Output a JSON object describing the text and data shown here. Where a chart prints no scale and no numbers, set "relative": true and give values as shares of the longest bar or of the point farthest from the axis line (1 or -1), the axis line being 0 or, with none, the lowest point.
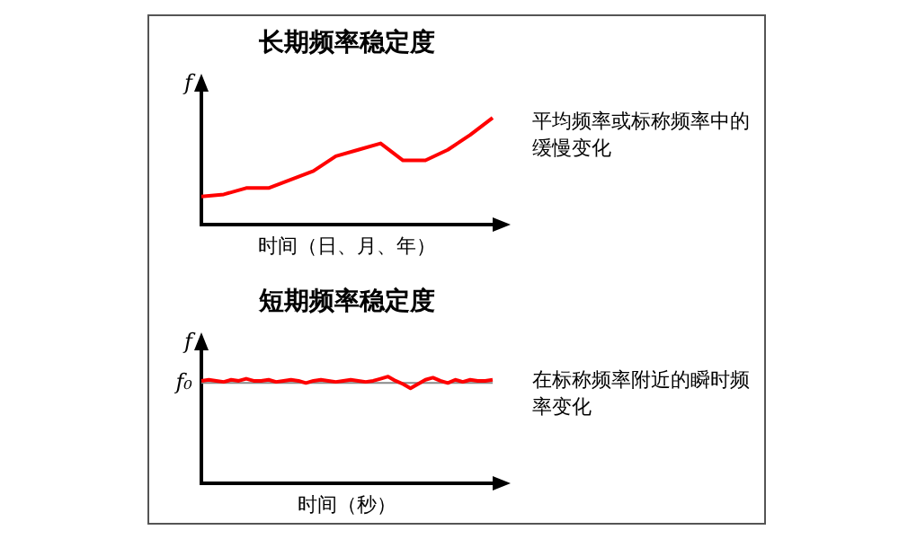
{
  "chart_data": [
    {
      "type": "line",
      "title": "长期频率稳定度",
      "xlabel": "时间（日、月、年）",
      "ylabel": "f",
      "relative": true,
      "categories": [
        null,
        null,
        null,
        null,
        null,
        null,
        null,
        null,
        null,
        null,
        null,
        null,
        null,
        null
      ],
      "series": [
        {
          "color": "#ff0000",
          "values": [
            0.26,
            0.28,
            0.34,
            0.34,
            0.42,
            0.5,
            0.64,
            0.7,
            0.76,
            0.6,
            0.6,
            0.7,
            0.84,
            1
          ]
        }
      ],
      "annotations": [
        "平均频率或标称频率中的缓慢变化"
      ],
      "grid": false,
      "legend": false,
      "marker": "none",
      "line_style": "solid"
    },
    {
      "type": "line",
      "title": "短期频率稳定度",
      "xlabel": "时间（秒）",
      "ylabel": "f",
      "relative": true,
      "categories": [
        null,
        null,
        null,
        null,
        null,
        null,
        null,
        null,
        null,
        null,
        null,
        null,
        null,
        null,
        null,
        null,
        null,
        null,
        null,
        null,
        null,
        null,
        null,
        null,
        null,
        null,
        null,
        null,
        null,
        null,
        null,
        null,
        null,
        null,
        null,
        null,
        null,
        null,
        null,
        null
      ],
      "series": [
        {
          "color": "#ff0000",
          "values": [
            0.96,
            0.97,
            0.96,
            0.95,
            0.97,
            0.96,
            0.98,
            0.96,
            0.96,
            0.97,
            0.95,
            0.96,
            0.97,
            0.96,
            0.94,
            0.96,
            0.97,
            0.96,
            0.95,
            0.96,
            0.97,
            0.96,
            0.95,
            0.96,
            0.98,
            1.0,
            0.96,
            0.93,
            0.89,
            0.93,
            0.97,
            0.99,
            0.96,
            0.94,
            0.97,
            0.95,
            0.97,
            0.96,
            0.96,
            0.97
          ]
        }
      ],
      "ref_lines": [
        {
          "axis": "y",
          "value": 0.94,
          "label": "f₀",
          "color": "#888888"
        }
      ],
      "annotations": [
        "在标称频率附近的瞬时频率变化"
      ],
      "grid": false,
      "legend": false,
      "marker": "none",
      "line_style": "solid"
    }
  ]
}
